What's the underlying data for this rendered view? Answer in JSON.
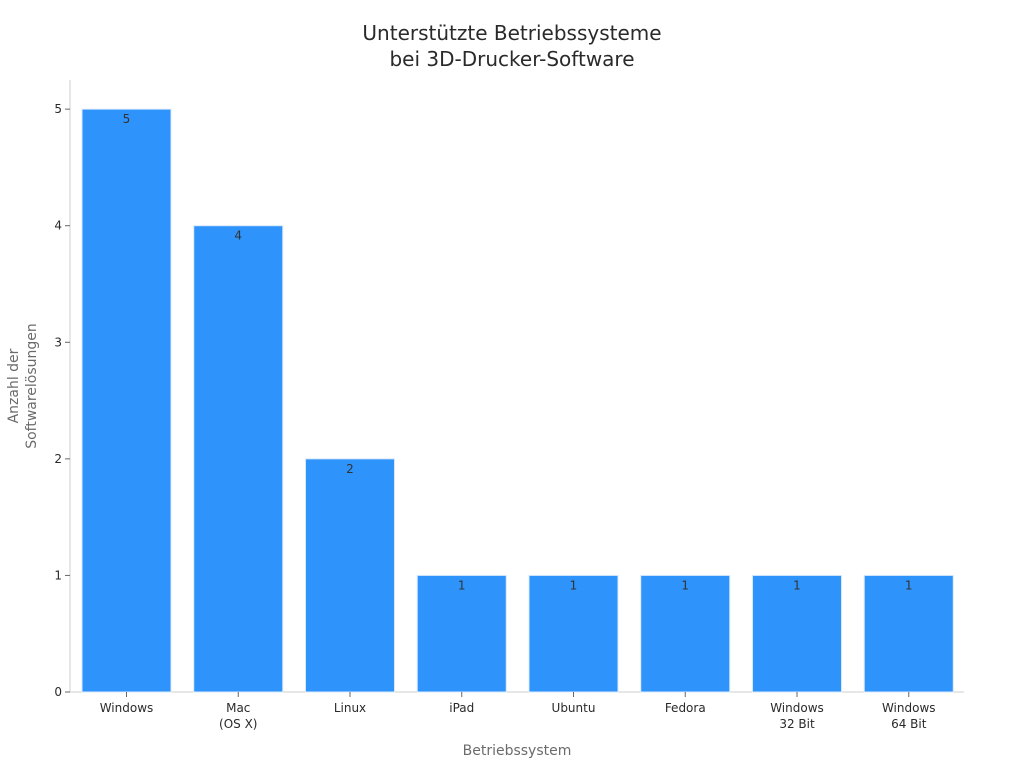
{
  "chart_data": {
    "type": "bar",
    "title": [
      "Unterstützte Betriebssysteme",
      "bei 3D-Drucker-Software"
    ],
    "xlabel": "Betriebssystem",
    "ylabel": [
      "Anzahl der",
      "Softwarelösungen"
    ],
    "categories": [
      [
        "Windows"
      ],
      [
        "Mac",
        "(OS X)"
      ],
      [
        "Linux"
      ],
      [
        "iPad"
      ],
      [
        "Ubuntu"
      ],
      [
        "Fedora"
      ],
      [
        "Windows",
        "32 Bit"
      ],
      [
        "Windows",
        "64 Bit"
      ]
    ],
    "values": [
      5,
      4,
      2,
      1,
      1,
      1,
      1,
      1
    ],
    "data_labels": [
      "5",
      "4",
      "2",
      "1",
      "1",
      "1",
      "1",
      "1"
    ],
    "ylim": [
      0,
      5.25
    ],
    "yticks": [
      0,
      1,
      2,
      3,
      4,
      5
    ],
    "grid": false,
    "legend": "none",
    "colors": {
      "bar": "#2e93fa",
      "bar_edge": "#d8e8fb",
      "axis": "#cfcfcf"
    }
  }
}
